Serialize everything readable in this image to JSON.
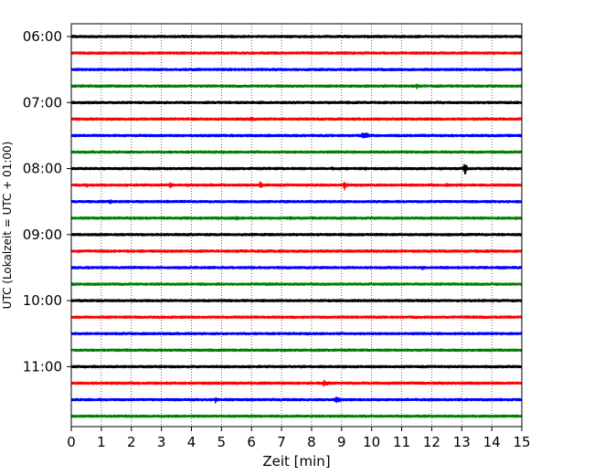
{
  "chart_data": {
    "type": "line",
    "subtype": "seismic-helicorder",
    "xlabel": "Zeit  [min]",
    "ylabel": "UTC (Lokalzeit = UTC + 01:00)",
    "xlim": [
      0,
      15
    ],
    "xticks": [
      0,
      1,
      2,
      3,
      4,
      5,
      6,
      7,
      8,
      9,
      10,
      11,
      12,
      13,
      14,
      15
    ],
    "xgrid": "dotted vertical lines at each minute",
    "row_interval_min": 15,
    "y_tick_labels": [
      "06:00",
      "07:00",
      "08:00",
      "09:00",
      "10:00",
      "11:00"
    ],
    "trace_colors": [
      "#000000",
      "#ff0000",
      "#0000ff",
      "#008000"
    ],
    "rows": [
      {
        "start": "06:00",
        "events": []
      },
      {
        "start": "06:15",
        "events": []
      },
      {
        "start": "06:30",
        "events": []
      },
      {
        "start": "06:45",
        "events": [
          {
            "t": 11.5,
            "amp": 0.4
          }
        ]
      },
      {
        "start": "07:00",
        "events": []
      },
      {
        "start": "07:15",
        "events": [
          {
            "t": 6.0,
            "amp": 0.4
          }
        ]
      },
      {
        "start": "07:30",
        "events": [
          {
            "t": 9.7,
            "amp": 0.55,
            "dur": 1.0
          }
        ]
      },
      {
        "start": "07:45",
        "events": []
      },
      {
        "start": "08:00",
        "events": [
          {
            "t": 4.6,
            "amp": 0.2
          },
          {
            "t": 8.7,
            "amp": 0.35
          },
          {
            "t": 9.8,
            "amp": 0.3
          },
          {
            "t": 13.1,
            "amp": 1.0
          }
        ]
      },
      {
        "start": "08:15",
        "events": [
          {
            "t": 0.5,
            "amp": 0.45
          },
          {
            "t": 3.3,
            "amp": 0.5
          },
          {
            "t": 6.3,
            "amp": 0.6
          },
          {
            "t": 9.1,
            "amp": 0.7
          },
          {
            "t": 12.5,
            "amp": 0.35
          }
        ]
      },
      {
        "start": "08:30",
        "events": [
          {
            "t": 1.3,
            "amp": 0.45
          },
          {
            "t": 2.3,
            "amp": 0.3
          }
        ]
      },
      {
        "start": "08:45",
        "events": [
          {
            "t": 1.6,
            "amp": 0.25
          },
          {
            "t": 5.5,
            "amp": 0.5
          },
          {
            "t": 7.3,
            "amp": 0.3
          },
          {
            "t": 14.8,
            "amp": 0.35
          }
        ]
      },
      {
        "start": "09:00",
        "events": [
          {
            "t": 11.8,
            "amp": 0.25,
            "dur": 1.0
          }
        ]
      },
      {
        "start": "09:15",
        "events": []
      },
      {
        "start": "09:30",
        "events": [
          {
            "t": 11.7,
            "amp": 0.35
          }
        ]
      },
      {
        "start": "09:45",
        "events": []
      },
      {
        "start": "10:00",
        "events": [
          {
            "t": 2.5,
            "amp": 0.25
          }
        ]
      },
      {
        "start": "10:15",
        "events": []
      },
      {
        "start": "10:30",
        "events": []
      },
      {
        "start": "10:45",
        "events": [
          {
            "t": 1.1,
            "amp": 0.2
          }
        ]
      },
      {
        "start": "11:00",
        "events": []
      },
      {
        "start": "11:15",
        "events": [
          {
            "t": 8.4,
            "amp": 0.45,
            "dur": 0.8
          }
        ]
      },
      {
        "start": "11:30",
        "events": [
          {
            "t": 4.8,
            "amp": 0.5
          },
          {
            "t": 8.8,
            "amp": 0.5,
            "dur": 0.8
          }
        ]
      },
      {
        "start": "11:45",
        "events": []
      }
    ]
  }
}
